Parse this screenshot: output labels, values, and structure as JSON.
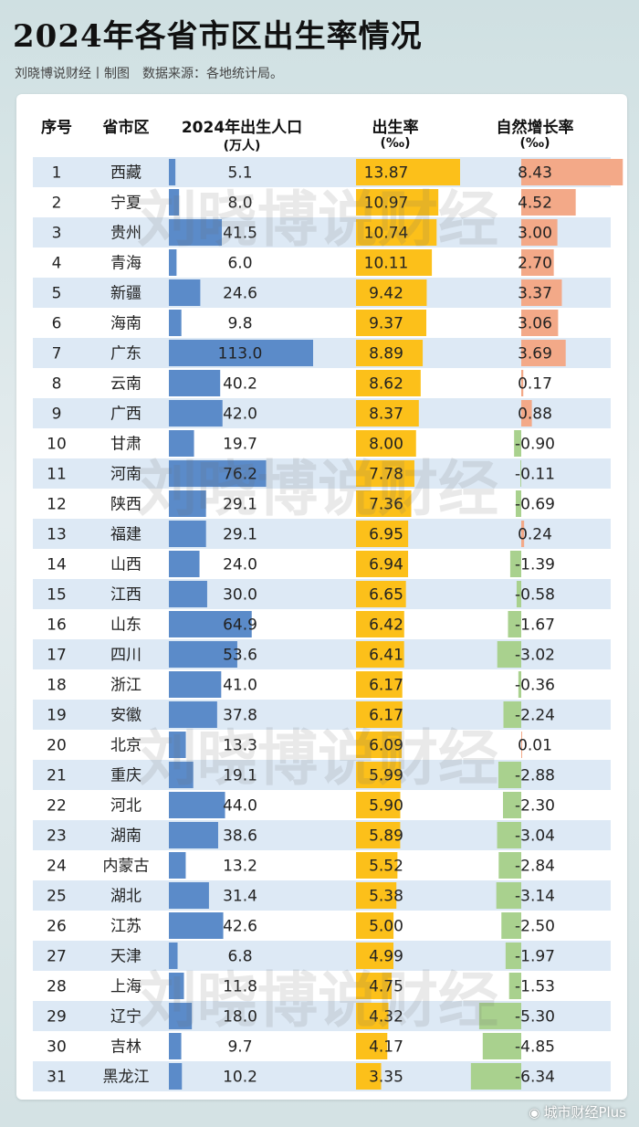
{
  "title": "2024年各省市区出生率情况",
  "subtitle": "刘晓博说财经丨制图　数据来源：各地统计局。",
  "headers": {
    "rank": "序号",
    "region": "省市区",
    "births_line1": "2024年出生人口",
    "births_line2": "(万人)",
    "rate_line1": "出生率",
    "rate_line2": "(‰)",
    "growth_line1": "自然增长率",
    "growth_line2": "(‰)"
  },
  "watermark": "刘晓博说财经",
  "footer": {
    "weibo_icon": "weibo-icon",
    "text": "城市财经Plus"
  },
  "colors": {
    "stripe": "#dde9f5",
    "births_bar": "#5b8bc9",
    "rate_bar": "#fcc01a",
    "growth_positive": "#f3a988",
    "growth_negative": "#a9d18e"
  },
  "chart_data": {
    "type": "table",
    "columns": [
      "序号",
      "省市区",
      "2024年出生人口(万人)",
      "出生率(‰)",
      "自然增长率(‰)"
    ],
    "rows": [
      {
        "rank": "1",
        "region": "西藏",
        "births": 5.1,
        "rate": 13.87,
        "growth": 8.43
      },
      {
        "rank": "2",
        "region": "宁夏",
        "births": 8.0,
        "rate": 10.97,
        "growth": 4.52
      },
      {
        "rank": "3",
        "region": "贵州",
        "births": 41.5,
        "rate": 10.74,
        "growth": 3.0
      },
      {
        "rank": "4",
        "region": "青海",
        "births": 6.0,
        "rate": 10.11,
        "growth": 2.7
      },
      {
        "rank": "5",
        "region": "新疆",
        "births": 24.6,
        "rate": 9.42,
        "growth": 3.37
      },
      {
        "rank": "6",
        "region": "海南",
        "births": 9.8,
        "rate": 9.37,
        "growth": 3.06
      },
      {
        "rank": "7",
        "region": "广东",
        "births": 113.0,
        "rate": 8.89,
        "growth": 3.69
      },
      {
        "rank": "8",
        "region": "云南",
        "births": 40.2,
        "rate": 8.62,
        "growth": 0.17
      },
      {
        "rank": "9",
        "region": "广西",
        "births": 42.0,
        "rate": 8.37,
        "growth": 0.88
      },
      {
        "rank": "10",
        "region": "甘肃",
        "births": 19.7,
        "rate": 8.0,
        "growth": -0.9
      },
      {
        "rank": "11",
        "region": "河南",
        "births": 76.2,
        "rate": 7.78,
        "growth": -0.11
      },
      {
        "rank": "12",
        "region": "陕西",
        "births": 29.1,
        "rate": 7.36,
        "growth": -0.69
      },
      {
        "rank": "13",
        "region": "福建",
        "births": 29.1,
        "rate": 6.95,
        "growth": 0.24
      },
      {
        "rank": "14",
        "region": "山西",
        "births": 24.0,
        "rate": 6.94,
        "growth": -1.39
      },
      {
        "rank": "15",
        "region": "江西",
        "births": 30.0,
        "rate": 6.65,
        "growth": -0.58
      },
      {
        "rank": "16",
        "region": "山东",
        "births": 64.9,
        "rate": 6.42,
        "growth": -1.67
      },
      {
        "rank": "17",
        "region": "四川",
        "births": 53.6,
        "rate": 6.41,
        "growth": -3.02
      },
      {
        "rank": "18",
        "region": "浙江",
        "births": 41.0,
        "rate": 6.17,
        "growth": -0.36
      },
      {
        "rank": "19",
        "region": "安徽",
        "births": 37.8,
        "rate": 6.17,
        "growth": -2.24
      },
      {
        "rank": "20",
        "region": "北京",
        "births": 13.3,
        "rate": 6.09,
        "growth": 0.01
      },
      {
        "rank": "21",
        "region": "重庆",
        "births": 19.1,
        "rate": 5.99,
        "growth": -2.88
      },
      {
        "rank": "22",
        "region": "河北",
        "births": 44.0,
        "rate": 5.9,
        "growth": -2.3
      },
      {
        "rank": "23",
        "region": "湖南",
        "births": 38.6,
        "rate": 5.89,
        "growth": -3.04
      },
      {
        "rank": "24",
        "region": "内蒙古",
        "births": 13.2,
        "rate": 5.52,
        "growth": -2.84
      },
      {
        "rank": "25",
        "region": "湖北",
        "births": 31.4,
        "rate": 5.38,
        "growth": -3.14
      },
      {
        "rank": "26",
        "region": "江苏",
        "births": 42.6,
        "rate": 5.0,
        "growth": -2.5
      },
      {
        "rank": "27",
        "region": "天津",
        "births": 6.8,
        "rate": 4.99,
        "growth": -1.97
      },
      {
        "rank": "28",
        "region": "上海",
        "births": 11.8,
        "rate": 4.75,
        "growth": -1.53
      },
      {
        "rank": "29",
        "region": "辽宁",
        "births": 18.0,
        "rate": 4.32,
        "growth": -5.3
      },
      {
        "rank": "30",
        "region": "吉林",
        "births": 9.7,
        "rate": 4.17,
        "growth": -4.85
      },
      {
        "rank": "31",
        "region": "黑龙江",
        "births": 10.2,
        "rate": 3.35,
        "growth": -6.34
      }
    ]
  }
}
